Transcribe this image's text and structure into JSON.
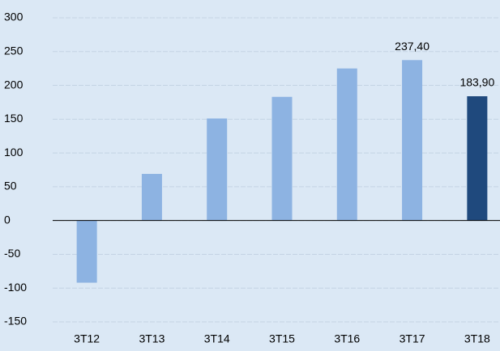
{
  "chart_data": {
    "type": "bar",
    "categories": [
      "3T12",
      "3T13",
      "3T14",
      "3T15",
      "3T16",
      "3T17",
      "3T18"
    ],
    "values": [
      -92,
      69,
      151,
      183,
      225,
      237.4,
      183.9
    ],
    "value_labels": [
      null,
      null,
      null,
      null,
      null,
      "237,40",
      "183,90"
    ],
    "colors": [
      "#8db3e2",
      "#8db3e2",
      "#8db3e2",
      "#8db3e2",
      "#8db3e2",
      "#8db3e2",
      "#1f497d"
    ],
    "ylim": [
      -150,
      300
    ],
    "yticks": [
      -150,
      -100,
      -50,
      0,
      50,
      100,
      150,
      200,
      250,
      300
    ],
    "grid": true
  }
}
